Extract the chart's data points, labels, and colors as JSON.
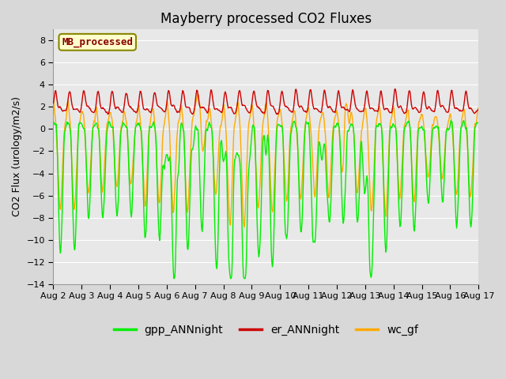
{
  "title": "Mayberry processed CO2 Fluxes",
  "ylabel": "CO2 Flux (urology/m2/s)",
  "ylim": [
    -14,
    9
  ],
  "yticks": [
    -14,
    -12,
    -10,
    -8,
    -6,
    -4,
    -2,
    0,
    2,
    4,
    6,
    8
  ],
  "n_points": 720,
  "days": 15,
  "color_gpp": "#00ee00",
  "color_er": "#cc0000",
  "color_wc": "#ffaa00",
  "legend_label_gpp": "gpp_ANNnight",
  "legend_label_er": "er_ANNnight",
  "legend_label_wc": "wc_gf",
  "inset_label": "MB_processed",
  "fig_bg_color": "#d8d8d8",
  "plot_bg_color": "#e8e8e8",
  "title_fontsize": 12,
  "axis_label_fontsize": 9,
  "tick_fontsize": 8,
  "legend_fontsize": 10,
  "linewidth": 1.0
}
